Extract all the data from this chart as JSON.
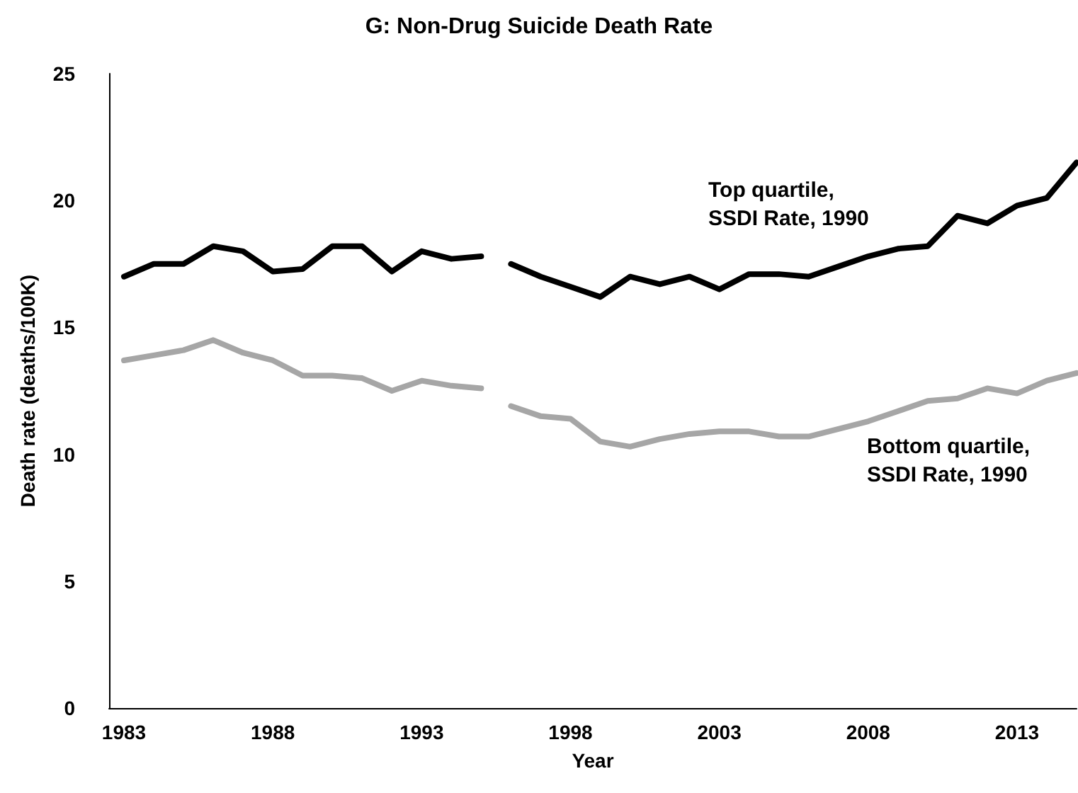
{
  "chart_data": {
    "type": "line",
    "title": "G: Non-Drug Suicide Death Rate",
    "xlabel": "Year",
    "ylabel": "Death rate (deaths/100K)",
    "xlim": [
      1982.5,
      2015
    ],
    "xticks": [
      1983,
      1988,
      1993,
      1998,
      2003,
      2008,
      2013
    ],
    "ylim": [
      0,
      25
    ],
    "yticks": [
      0,
      5,
      10,
      15,
      20,
      25
    ],
    "grid": false,
    "legend": false,
    "marker": "none",
    "line_style": "solid",
    "series": [
      {
        "color": "#000000",
        "x": [
          1983,
          1984,
          1985,
          1986,
          1987,
          1988,
          1989,
          1990,
          1991,
          1992,
          1993,
          1994,
          1995
        ],
        "values": [
          17.0,
          17.5,
          17.5,
          18.2,
          18.0,
          17.2,
          17.3,
          18.2,
          18.2,
          17.2,
          18.0,
          17.7,
          17.8
        ]
      },
      {
        "name": "Top quartile,\nSSDI Rate, 1990",
        "color": "#000000",
        "x": [
          1996,
          1997,
          1998,
          1999,
          2000,
          2001,
          2002,
          2003,
          2004,
          2005,
          2006,
          2007,
          2008,
          2009,
          2010,
          2011,
          2012,
          2013,
          2014,
          2015
        ],
        "values": [
          17.5,
          17.0,
          16.6,
          16.2,
          17.0,
          16.7,
          17.0,
          16.5,
          17.1,
          17.1,
          17.0,
          17.4,
          17.8,
          18.1,
          18.2,
          19.4,
          19.1,
          19.8,
          20.1,
          21.5
        ]
      },
      {
        "color": "#a6a6a6",
        "x": [
          1983,
          1984,
          1985,
          1986,
          1987,
          1988,
          1989,
          1990,
          1991,
          1992,
          1993,
          1994,
          1995
        ],
        "values": [
          13.7,
          13.9,
          14.1,
          14.5,
          14.0,
          13.7,
          13.1,
          13.1,
          13.0,
          12.5,
          12.9,
          12.7,
          12.6
        ]
      },
      {
        "name": "Bottom quartile,\nSSDI Rate, 1990",
        "color": "#a6a6a6",
        "x": [
          1996,
          1997,
          1998,
          1999,
          2000,
          2001,
          2002,
          2003,
          2004,
          2005,
          2006,
          2007,
          2008,
          2009,
          2010,
          2011,
          2012,
          2013,
          2014,
          2015
        ],
        "values": [
          11.9,
          11.5,
          11.4,
          10.5,
          10.3,
          10.6,
          10.8,
          10.9,
          10.9,
          10.7,
          10.7,
          11.0,
          11.3,
          11.7,
          12.1,
          12.2,
          12.6,
          12.4,
          12.9,
          13.2
        ]
      }
    ]
  }
}
